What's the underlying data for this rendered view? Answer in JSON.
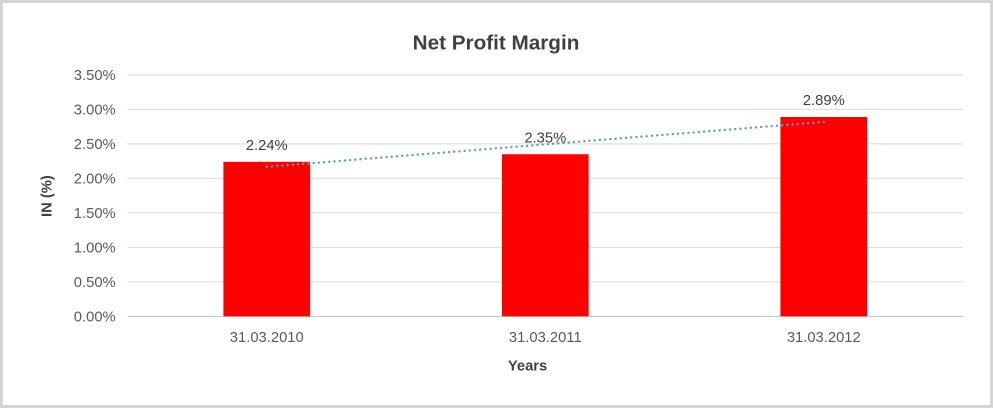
{
  "chart_data": {
    "type": "bar",
    "title": "Net Profit Margin",
    "xlabel": "Years",
    "ylabel": "IN (%)",
    "categories": [
      "31.03.2010",
      "31.03.2011",
      "31.03.2012"
    ],
    "values": [
      2.24,
      2.35,
      2.89
    ],
    "data_labels": [
      "2.24%",
      "2.35%",
      "2.89%"
    ],
    "y_ticks": [
      "3.50%",
      "3.00%",
      "2.50%",
      "2.00%",
      "1.50%",
      "1.00%",
      "0.50%",
      "0.00%"
    ],
    "ylim": [
      0,
      3.5
    ],
    "y_tick_step": 0.5,
    "grid": true,
    "legend": "none",
    "trendline": {
      "type": "linear",
      "style": "dotted"
    },
    "colors": {
      "bar": "#FF0000",
      "trendline": "#5B9BD5",
      "gridline": "#D9D9D9",
      "axis_line": "#BFBFBF",
      "title_text": "#404040",
      "tick_text": "#595959",
      "border": "#D5D5D5"
    }
  }
}
